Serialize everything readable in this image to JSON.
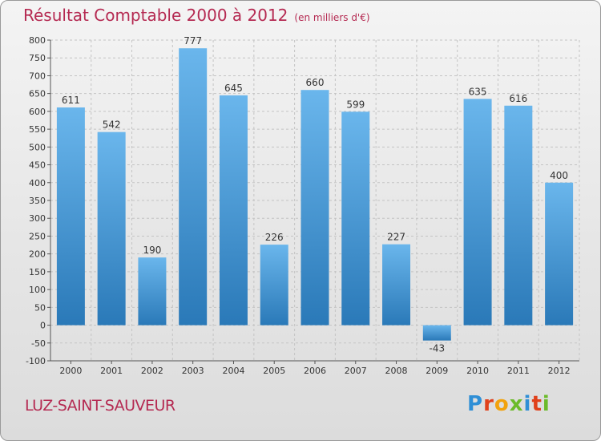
{
  "header": {
    "title": "Résultat Comptable 2000 à 2012",
    "subtitle": "(en milliers d'€)"
  },
  "footer": {
    "place": "LUZ-SAINT-SAUVEUR",
    "logo_letters": [
      "P",
      "r",
      "o",
      "x",
      "i",
      "t",
      "i"
    ]
  },
  "colors": {
    "bar_top": "#6ab6ec",
    "bar_bottom": "#2a79b8",
    "title": "#b52a52"
  },
  "chart_data": {
    "type": "bar",
    "title": "Résultat Comptable 2000 à 2012",
    "xlabel": "",
    "ylabel": "",
    "categories": [
      "2000",
      "2001",
      "2002",
      "2003",
      "2004",
      "2005",
      "2006",
      "2007",
      "2008",
      "2009",
      "2010",
      "2011",
      "2012"
    ],
    "values": [
      611,
      542,
      190,
      777,
      645,
      226,
      660,
      599,
      227,
      -43,
      635,
      616,
      400
    ],
    "ylim": [
      -100,
      800
    ],
    "yticks": [
      -100,
      -50,
      0,
      50,
      100,
      150,
      200,
      250,
      300,
      350,
      400,
      450,
      500,
      550,
      600,
      650,
      700,
      750,
      800
    ],
    "grid": true
  }
}
